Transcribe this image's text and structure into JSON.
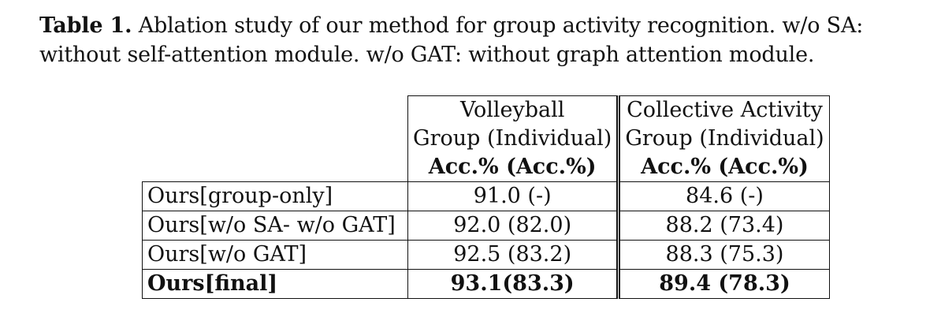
{
  "caption": {
    "label": "Table 1.",
    "text": "Ablation study of our method for group activity recognition. w/o SA: without self-attention module. w/o GAT: without graph attention module."
  },
  "table": {
    "header": {
      "datasets": [
        "Volleyball",
        "Collective Activity"
      ],
      "subheaders": [
        "Group (Individual)",
        "Group (Individual)"
      ],
      "metrics": [
        "Acc.% (Acc.%)",
        "Acc.% (Acc.%)"
      ]
    },
    "rows": [
      {
        "name": "Ours[group-only]",
        "volleyball": "91.0 (-)",
        "collective": "84.6 (-)"
      },
      {
        "name": "Ours[w/o SA- w/o GAT]",
        "volleyball": "92.0 (82.0)",
        "collective": "88.2 (73.4)"
      },
      {
        "name": "Ours[w/o GAT]",
        "volleyball": "92.5 (83.2)",
        "collective": "88.3 (75.3)"
      },
      {
        "name": "Ours[final]",
        "volleyball": "93.1(83.3)",
        "collective": "89.4 (78.3)"
      }
    ]
  }
}
